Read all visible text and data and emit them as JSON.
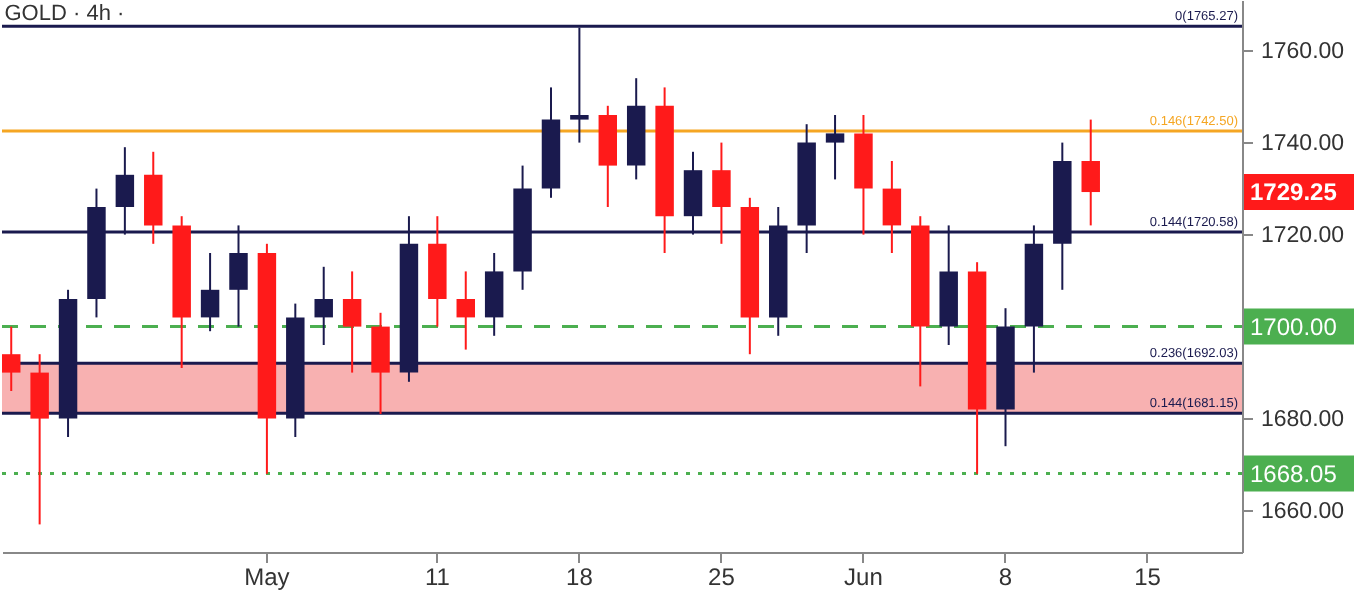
{
  "chart_data": {
    "type": "candlestick",
    "title": "GOLD · 4h ·",
    "categories": [
      null,
      null,
      null,
      null,
      null,
      null,
      null,
      null,
      null,
      "May",
      null,
      null,
      null,
      null,
      null,
      "11",
      null,
      null,
      null,
      null,
      "18",
      null,
      null,
      null,
      null,
      "25",
      null,
      null,
      null,
      null,
      "Jun",
      null,
      null,
      null,
      null,
      "8",
      null,
      null,
      null,
      null,
      "15",
      null,
      null,
      null
    ],
    "ohlc": [
      [
        1694,
        1700,
        1686,
        1690
      ],
      [
        1690,
        1694,
        1657,
        1680
      ],
      [
        1680,
        1708,
        1676,
        1706
      ],
      [
        1706,
        1730,
        1702,
        1726
      ],
      [
        1726,
        1739,
        1720,
        1733
      ],
      [
        1733,
        1738,
        1718,
        1722
      ],
      [
        1722,
        1724,
        1691,
        1702
      ],
      [
        1702,
        1716,
        1699,
        1708
      ],
      [
        1708,
        1722,
        1700,
        1716
      ],
      [
        1716,
        1718,
        1668,
        1680
      ],
      [
        1680,
        1705,
        1676,
        1702
      ],
      [
        1702,
        1713,
        1696,
        1706
      ],
      [
        1706,
        1712,
        1690,
        1700
      ],
      [
        1700,
        1703,
        1681,
        1690
      ],
      [
        1690,
        1724,
        1688,
        1718
      ],
      [
        1718,
        1724,
        1700,
        1706
      ],
      [
        1706,
        1712,
        1695,
        1702
      ],
      [
        1702,
        1716,
        1698,
        1712
      ],
      [
        1712,
        1735,
        1708,
        1730
      ],
      [
        1730,
        1752,
        1728,
        1745
      ],
      [
        1745,
        1765,
        1740,
        1746
      ],
      [
        1746,
        1748,
        1726,
        1735
      ],
      [
        1735,
        1754,
        1732,
        1748
      ],
      [
        1748,
        1752,
        1716,
        1724
      ],
      [
        1724,
        1738,
        1720,
        1734
      ],
      [
        1734,
        1740,
        1718,
        1726
      ],
      [
        1726,
        1728,
        1694,
        1702
      ],
      [
        1702,
        1726,
        1698,
        1722
      ],
      [
        1722,
        1744,
        1716,
        1740
      ],
      [
        1740,
        1746,
        1732,
        1742
      ],
      [
        1742,
        1746,
        1720,
        1730
      ],
      [
        1730,
        1736,
        1716,
        1722
      ],
      [
        1722,
        1724,
        1687,
        1700
      ],
      [
        1700,
        1722,
        1696,
        1712
      ],
      [
        1712,
        1714,
        1668,
        1682
      ],
      [
        1682,
        1704,
        1674,
        1700
      ],
      [
        1700,
        1722,
        1690,
        1718
      ],
      [
        1718,
        1740,
        1708,
        1736
      ],
      [
        1736,
        1745,
        1722,
        1729.25
      ],
      null,
      null,
      null,
      null,
      null
    ],
    "colors": [
      "#ff1a1a",
      "#ff1a1a",
      "#1a1a4e",
      "#1a1a4e",
      "#1a1a4e",
      "#ff1a1a",
      "#ff1a1a",
      "#1a1a4e",
      "#1a1a4e",
      "#ff1a1a",
      "#1a1a4e",
      "#1a1a4e",
      "#ff1a1a",
      "#ff1a1a",
      "#1a1a4e",
      "#ff1a1a",
      "#ff1a1a",
      "#1a1a4e",
      "#1a1a4e",
      "#1a1a4e",
      "#1a1a4e",
      "#ff1a1a",
      "#1a1a4e",
      "#ff1a1a",
      "#1a1a4e",
      "#ff1a1a",
      "#ff1a1a",
      "#1a1a4e",
      "#1a1a4e",
      "#1a1a4e",
      "#ff1a1a",
      "#ff1a1a",
      "#ff1a1a",
      "#1a1a4e",
      "#ff1a1a",
      "#1a1a4e",
      "#1a1a4e",
      "#1a1a4e",
      "#ff1a1a",
      null,
      null,
      null,
      null,
      null
    ],
    "ylim": [
      1651,
      1771
    ],
    "yticks": [
      {
        "value": 1660,
        "label": "1660.00"
      },
      {
        "value": 1680,
        "label": "1680.00"
      },
      {
        "value": 1720,
        "label": "1720.00"
      },
      {
        "value": 1740,
        "label": "1740.00"
      },
      {
        "value": 1760,
        "label": "1760.00"
      }
    ],
    "ref_lines": [
      {
        "axis": "y",
        "value": 1765.27,
        "label": "0(1765.27)",
        "color": "#1a1a4e"
      },
      {
        "axis": "y",
        "value": 1742.5,
        "label": "0.146(1742.50)",
        "color": "#f5a623"
      },
      {
        "axis": "y",
        "value": 1720.58,
        "label": "0.144(1720.58)",
        "color": "#1a1a4e"
      },
      {
        "axis": "y",
        "value": 1700,
        "label": "1700.00",
        "color": "#4caf50",
        "line_style": "dashed"
      },
      {
        "axis": "y",
        "value": 1692.03,
        "label": "0.236(1692.03)",
        "color": "#1a1a4e"
      },
      {
        "axis": "y",
        "value": 1681.15,
        "label": "0.144(1681.15)",
        "color": "#1a1a4e"
      },
      {
        "axis": "y",
        "value": 1668.05,
        "label": "1668.05",
        "color": "#4caf50",
        "line_style": "dotted"
      }
    ],
    "bands": [
      {
        "axis": "y",
        "from": 1681.15,
        "to": 1692.03,
        "color": "#f7a8a8"
      }
    ],
    "annotations": [
      "1729.25"
    ],
    "grid": false
  }
}
